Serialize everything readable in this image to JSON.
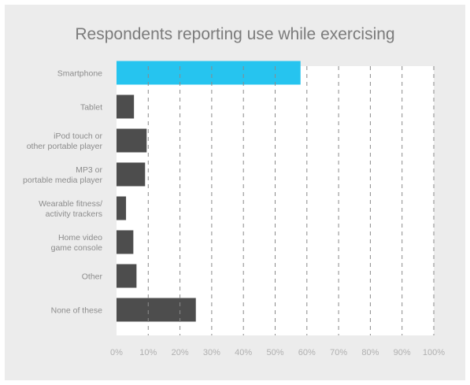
{
  "title": "Respondents reporting use while exercising",
  "colors": {
    "highlight": "#26c4ef",
    "bar": "#4d4d4d",
    "background": "#ececec",
    "plot_area": "#ffffff",
    "grid": "#8a8a8a"
  },
  "chart_data": {
    "type": "bar",
    "orientation": "horizontal",
    "title": "Respondents reporting use while exercising",
    "categories": [
      [
        "Smartphone"
      ],
      [
        "Tablet"
      ],
      [
        "iPod touch or",
        "other portable player"
      ],
      [
        "MP3 or",
        "portable media player"
      ],
      [
        "Wearable fitness/",
        "activity trackers"
      ],
      [
        "Home video",
        "game console"
      ],
      [
        "Other"
      ],
      [
        "None of these"
      ]
    ],
    "values": [
      58,
      5.5,
      9.5,
      9,
      3,
      5.3,
      6.3,
      25
    ],
    "highlight_index": 0,
    "xlim": [
      0,
      100
    ],
    "xticks": [
      0,
      10,
      20,
      30,
      40,
      50,
      60,
      70,
      80,
      90,
      100
    ],
    "xtick_labels": [
      "0%",
      "10%",
      "20%",
      "30%",
      "40%",
      "50%",
      "60%",
      "70%",
      "80%",
      "90%",
      "100%"
    ],
    "xlabel": "",
    "ylabel": "",
    "grid": "vertical dashed",
    "legend": "none"
  }
}
